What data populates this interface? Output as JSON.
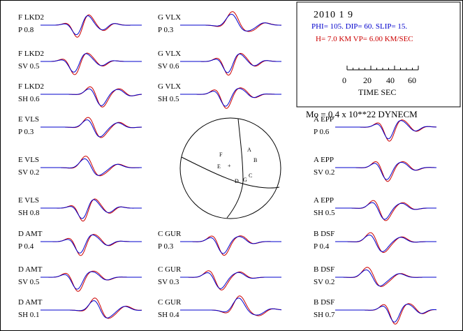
{
  "header": {
    "date": "2010  1  9",
    "mechanism": "PHI= 105. DIP= 60. SLIP=  15.",
    "depth": "H=  7.0 KM  VP= 6.00 KM/SEC",
    "scale_ticks": [
      "0",
      "20",
      "40",
      "60"
    ],
    "scale_label": "TIME  SEC",
    "moment": "Mo =  0.4 x 10**22 DYNECM"
  },
  "colors": {
    "observed": "#cc0000",
    "synthetic": "#0000cc"
  },
  "traces": [
    {
      "station": "F LKD2",
      "comp": "P  0.8",
      "col": 0,
      "row": 0
    },
    {
      "station": "F LKD2",
      "comp": "SV 0.5",
      "col": 0,
      "row": 1
    },
    {
      "station": "F LKD2",
      "comp": "SH 0.6",
      "col": 0,
      "row": 2
    },
    {
      "station": "E VLS",
      "comp": "P  0.3",
      "col": 0,
      "row": 3
    },
    {
      "station": "E VLS",
      "comp": "SV 0.2",
      "col": 0,
      "row": 4
    },
    {
      "station": "E VLS",
      "comp": "SH 0.8",
      "col": 0,
      "row": 5
    },
    {
      "station": "D AMT",
      "comp": "P  0.4",
      "col": 0,
      "row": 6
    },
    {
      "station": "D AMT",
      "comp": "SV 0.5",
      "col": 0,
      "row": 7
    },
    {
      "station": "D AMT",
      "comp": "SH 0.1",
      "col": 0,
      "row": 8
    },
    {
      "station": "G VLX",
      "comp": "P  0.3",
      "col": 1,
      "row": 0
    },
    {
      "station": "G VLX",
      "comp": "SV 0.6",
      "col": 1,
      "row": 1
    },
    {
      "station": "G VLX",
      "comp": "SH 0.5",
      "col": 1,
      "row": 2
    },
    {
      "station": "C GUR",
      "comp": "P  0.3",
      "col": 1,
      "row": 6
    },
    {
      "station": "C GUR",
      "comp": "SV 0.3",
      "col": 1,
      "row": 7
    },
    {
      "station": "C GUR",
      "comp": "SH 0.4",
      "col": 1,
      "row": 8
    },
    {
      "station": "A EPP",
      "comp": "P  0.6",
      "col": 2,
      "row": 3
    },
    {
      "station": "A EPP",
      "comp": "SV 0.2",
      "col": 2,
      "row": 4
    },
    {
      "station": "A EPP",
      "comp": "SH 0.5",
      "col": 2,
      "row": 5
    },
    {
      "station": "B DSF",
      "comp": "P  0.4",
      "col": 2,
      "row": 6
    },
    {
      "station": "B DSF",
      "comp": "SV 0.2",
      "col": 2,
      "row": 7
    },
    {
      "station": "B DSF",
      "comp": "SH 0.7",
      "col": 2,
      "row": 8
    }
  ],
  "beachball": {
    "stations": [
      "F",
      "E",
      "+",
      "A",
      "B",
      "D",
      "G",
      "C"
    ]
  }
}
